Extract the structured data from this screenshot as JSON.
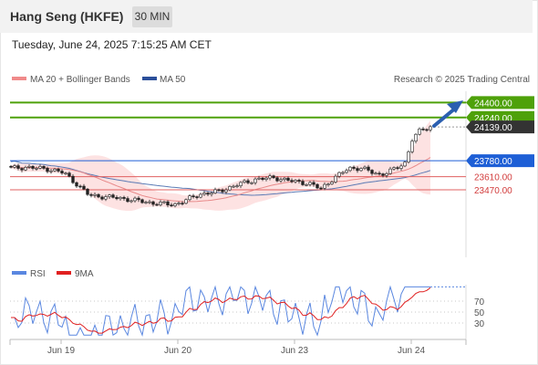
{
  "header": {
    "title": "Hang Seng (HKFE)",
    "timeframe": "30 MIN"
  },
  "datetime": "Tuesday, June 24, 2025 7:15:25 AM CET",
  "legend": {
    "ma20": "MA 20 + Bollinger Bands",
    "ma50": "MA 50",
    "credit": "Research © 2025 Trading Central"
  },
  "rsi_legend": {
    "rsi": "RSI",
    "ma9": "9MA"
  },
  "colors": {
    "green": "#4ea10a",
    "blue": "#1e5fd6",
    "red": "#e06060",
    "band": "#fde2e2",
    "ma50": "#5b7bb5",
    "rsi": "#5a87e0",
    "dark": "#333333"
  },
  "chart_data": {
    "type": "candlestick",
    "x_ticks": [
      "Jun 19",
      "Jun 20",
      "Jun 23",
      "Jun 24"
    ],
    "ylim": [
      22750,
      24520
    ],
    "levels": [
      {
        "value": 24400,
        "label": "24400.00",
        "kind": "resistance"
      },
      {
        "value": 24240,
        "label": "24240.00",
        "kind": "resistance"
      },
      {
        "value": 24139,
        "label": "24139.00",
        "kind": "last"
      },
      {
        "value": 23780,
        "label": "23780.00",
        "kind": "pivot"
      },
      {
        "value": 23610,
        "label": "23610.00",
        "kind": "support"
      },
      {
        "value": 23470,
        "label": "23470.00",
        "kind": "support"
      }
    ],
    "rsi": {
      "levels": [
        70,
        50,
        30
      ],
      "ylim": [
        0,
        100
      ]
    }
  }
}
